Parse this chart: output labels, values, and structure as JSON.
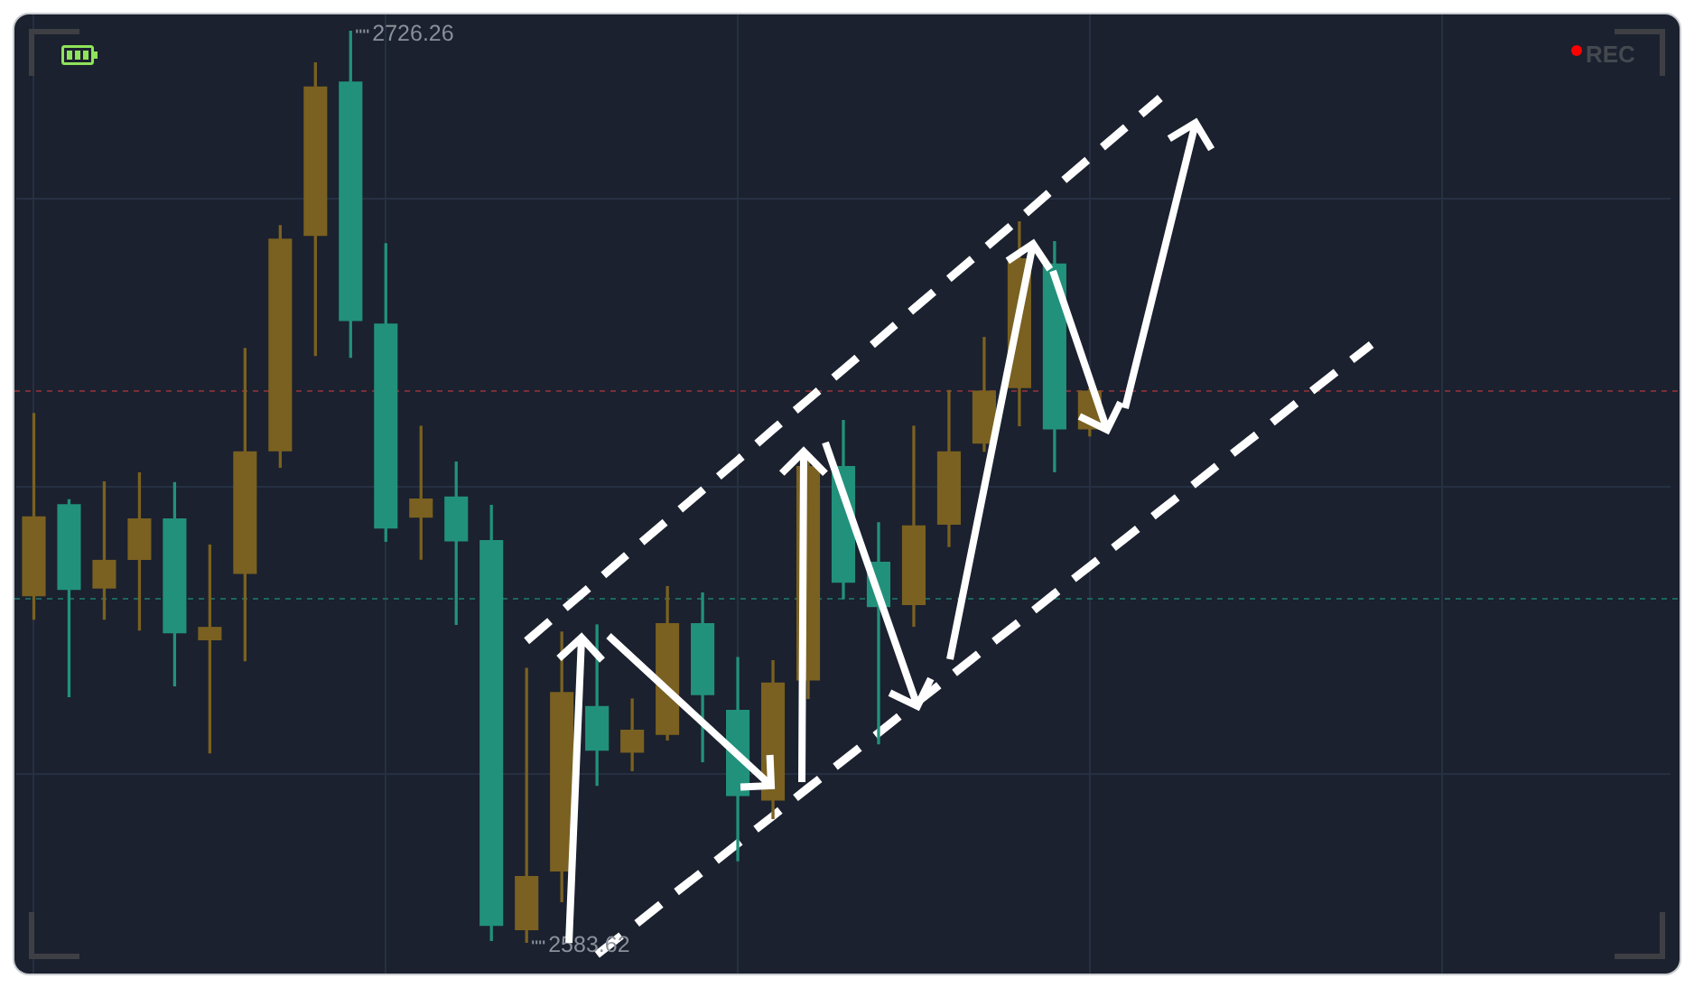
{
  "chart_data": {
    "type": "candlestick",
    "categories": [
      null,
      null,
      null,
      null,
      null,
      null,
      null,
      null,
      null,
      null,
      null,
      null,
      null,
      null,
      null,
      null,
      null,
      null,
      null,
      null,
      null,
      null,
      null,
      null,
      null,
      null,
      null,
      null,
      null,
      null,
      null,
      null,
      null,
      null,
      null,
      null,
      null,
      null,
      null,
      null,
      null,
      null,
      null,
      null,
      null,
      null,
      null
    ],
    "ohlc": [
      [
        2637.8,
        2666.4,
        2634.2,
        2650.3
      ],
      [
        2652.2,
        2652.9,
        2622.1,
        2638.8
      ],
      [
        2639.0,
        2655.7,
        2634.2,
        2643.5
      ],
      [
        2643.5,
        2657.1,
        2632.5,
        2650.0
      ],
      [
        2650.0,
        2655.6,
        2623.8,
        2632.0
      ],
      [
        2630.9,
        2645.8,
        2613.3,
        2633.0
      ],
      [
        2641.3,
        2676.6,
        2627.7,
        2660.5
      ],
      [
        2660.5,
        2695.8,
        2658.0,
        2693.8
      ],
      [
        2694.2,
        2721.3,
        2675.5,
        2717.6
      ],
      [
        2718.4,
        2726.26,
        2675.2,
        2680.9
      ],
      [
        2680.5,
        2693.0,
        2646.4,
        2648.4
      ],
      [
        2650.1,
        2664.4,
        2643.6,
        2653.1
      ],
      [
        2653.4,
        2658.8,
        2633.4,
        2646.4
      ],
      [
        2646.6,
        2652.0,
        2583.9,
        2586.2
      ],
      [
        2585.5,
        2626.5,
        2583.62,
        2594.0
      ],
      [
        2594.7,
        2632.2,
        2590.0,
        2622.8
      ],
      [
        2620.6,
        2633.3,
        2608.2,
        2613.6
      ],
      [
        2613.3,
        2621.7,
        2610.5,
        2616.9
      ],
      [
        2616.1,
        2639.3,
        2615.3,
        2633.6
      ],
      [
        2633.6,
        2638.3,
        2611.9,
        2622.3
      ],
      [
        2620.0,
        2628.2,
        2596.4,
        2606.5
      ],
      [
        2605.8,
        2627.7,
        2603.0,
        2624.3
      ],
      [
        2624.6,
        2659.3,
        2621.8,
        2658.2
      ],
      [
        2658.2,
        2665.3,
        2637.4,
        2639.9
      ],
      [
        2643.2,
        2649.3,
        2614.7,
        2636.1
      ],
      [
        2636.4,
        2664.4,
        2633.1,
        2648.9
      ],
      [
        2649.0,
        2670.0,
        2645.6,
        2660.5
      ],
      [
        2661.7,
        2678.3,
        2660.5,
        2670.0
      ],
      [
        2670.4,
        2696.4,
        2664.5,
        2690.7
      ],
      [
        2689.9,
        2693.3,
        2657.3,
        2663.9
      ],
      [
        2663.9,
        2670.3,
        2662.9,
        2670.0
      ],
      null,
      null,
      null,
      null,
      null,
      null,
      null,
      null,
      null,
      null,
      null,
      null,
      null,
      null,
      null,
      null
    ],
    "colors": [
      "#7a6121",
      "#22917b",
      "#7a6121",
      "#7a6121",
      "#22917b",
      "#7a6121",
      "#7a6121",
      "#7a6121",
      "#7a6121",
      "#22917b",
      "#22917b",
      "#7a6121",
      "#22917b",
      "#22917b",
      "#7a6121",
      "#7a6121",
      "#22917b",
      "#7a6121",
      "#7a6121",
      "#22917b",
      "#22917b",
      "#7a6121",
      "#7a6121",
      "#22917b",
      "#22917b",
      "#7a6121",
      "#7a6121",
      "#7a6121",
      "#7a6121",
      "#22917b",
      "#7a6121",
      null,
      null,
      null,
      null,
      null,
      null,
      null,
      null,
      null,
      null,
      null,
      null,
      null,
      null,
      null,
      null
    ],
    "series": [
      {
        "type": "line",
        "color": "#ffffff",
        "line_style": "dashed",
        "marker": "none",
        "values": [
          null,
          null,
          null,
          null,
          null,
          null,
          null,
          null,
          null,
          null,
          null,
          null,
          null,
          null,
          2630.8,
          2635.5,
          2640.2,
          2645.0,
          2649.7,
          2654.4,
          2659.1,
          2663.9,
          2668.6,
          2673.3,
          2678.0,
          2682.8,
          2687.5,
          2692.2,
          2696.9,
          2701.7,
          2706.4,
          2711.1,
          2715.8,
          null,
          null,
          null,
          null,
          null,
          null,
          null,
          null,
          null,
          null,
          null,
          null,
          null,
          null
        ]
      },
      {
        "type": "line",
        "color": "#ffffff",
        "line_style": "dashed",
        "marker": "none",
        "values": [
          null,
          null,
          null,
          null,
          null,
          null,
          null,
          null,
          null,
          null,
          null,
          null,
          null,
          null,
          null,
          null,
          2581.7,
          2586.0,
          2590.4,
          2594.7,
          2599.1,
          2603.4,
          2607.8,
          2612.1,
          2616.4,
          2620.8,
          2625.1,
          2629.5,
          2633.8,
          2638.2,
          2642.5,
          2646.8,
          2651.2,
          2655.5,
          2659.9,
          2664.2,
          2668.6,
          2672.9,
          2677.2,
          null,
          null,
          null,
          null,
          null,
          null,
          null,
          null
        ]
      }
    ],
    "yticks": [
      {
        "value": 2610,
        "label": null
      },
      {
        "value": 2655,
        "label": null
      },
      {
        "value": 2700,
        "label": null
      }
    ],
    "grid": true,
    "tick_labels": false,
    "ref_lines": [
      {
        "axis": "y",
        "value": 2670.0,
        "color": "#7a2e38",
        "line_style": "dotted"
      },
      {
        "axis": "y",
        "value": 2637.6,
        "color": "#1c665e",
        "line_style": "dotted"
      }
    ],
    "annotations": [
      "2726.26",
      "2583.62",
      "REC"
    ]
  }
}
